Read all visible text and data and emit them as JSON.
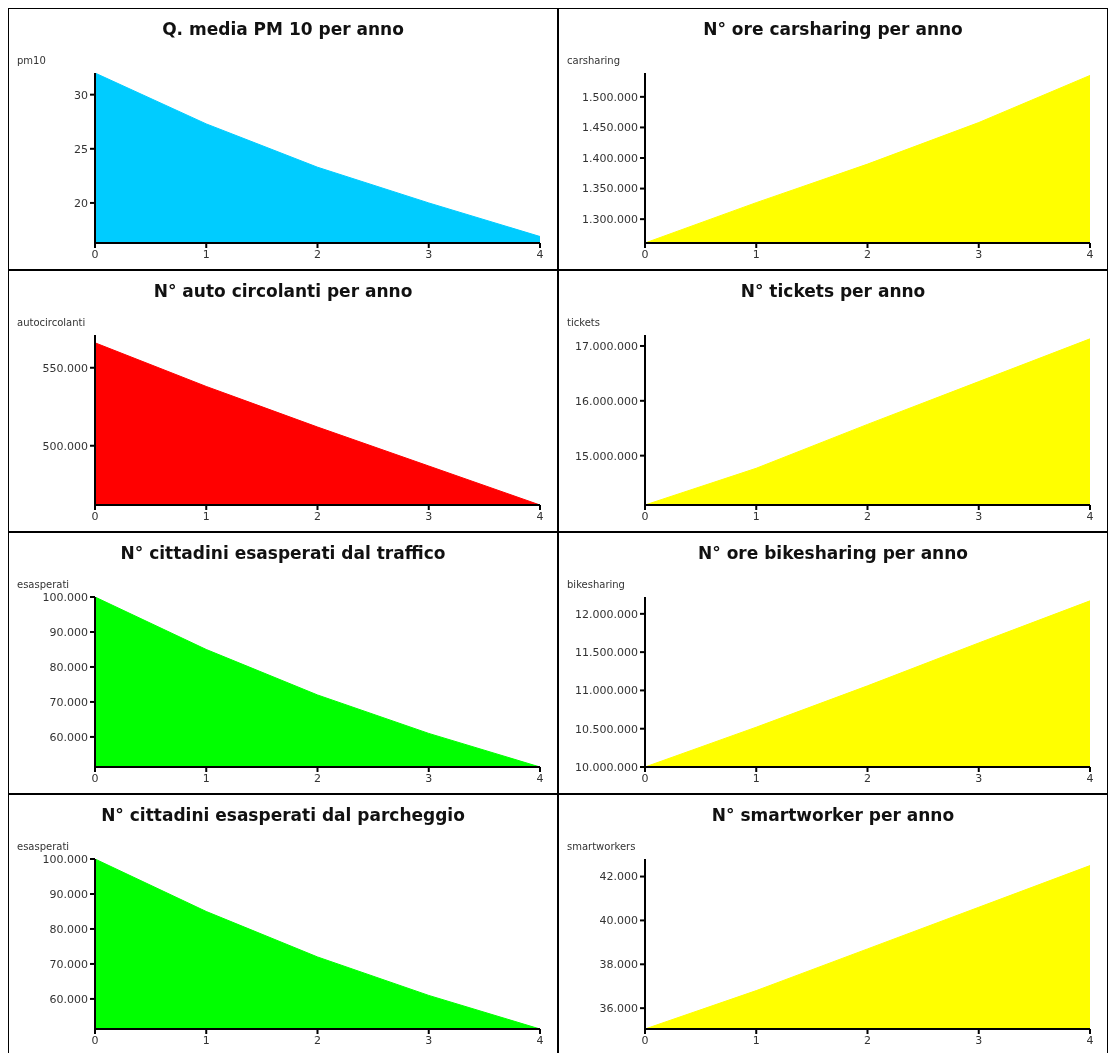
{
  "chart_data": [
    {
      "type": "area",
      "title": "Q. media PM 10 per anno",
      "ylabel": "pm10",
      "x": [
        0,
        1,
        2,
        3,
        4
      ],
      "values": [
        32,
        27.3,
        23.3,
        20,
        16.9
      ],
      "color": "#00ccff",
      "xlim": [
        0,
        4
      ],
      "xticks": [
        0,
        1,
        2,
        3,
        4
      ],
      "ylim": [
        16.3,
        32
      ],
      "yticks": [
        20,
        25,
        30
      ],
      "grid": false
    },
    {
      "type": "area",
      "title": "N° ore carsharing per anno",
      "ylabel": "carsharing",
      "x": [
        0,
        1,
        2,
        3,
        4
      ],
      "values": [
        1261000,
        1327000,
        1390000,
        1458000,
        1535000
      ],
      "color": "#ffff00",
      "xlim": [
        0,
        4
      ],
      "xticks": [
        0,
        1,
        2,
        3,
        4
      ],
      "ylim": [
        1261000,
        1539000
      ],
      "yticks": [
        {
          "value": 1300000,
          "label": "1.300.000"
        },
        {
          "value": 1350000,
          "label": "1.350.000"
        },
        {
          "value": 1400000,
          "label": "1.400.000"
        },
        {
          "value": 1450000,
          "label": "1.450.000"
        },
        {
          "value": 1500000,
          "label": "1.500.000"
        }
      ],
      "grid": false
    },
    {
      "type": "area",
      "title": "N° auto circolanti per anno",
      "ylabel": "autocircolanti",
      "x": [
        0,
        1,
        2,
        3,
        4
      ],
      "values": [
        566000,
        538000,
        512000,
        487000,
        462000
      ],
      "color": "#ff0000",
      "xlim": [
        0,
        4
      ],
      "xticks": [
        0,
        1,
        2,
        3,
        4
      ],
      "ylim": [
        462000,
        571000
      ],
      "yticks": [
        {
          "value": 500000,
          "label": "500.000"
        },
        {
          "value": 550000,
          "label": "550.000"
        }
      ],
      "grid": false
    },
    {
      "type": "area",
      "title": "N° tickets per anno",
      "ylabel": "tickets",
      "x": [
        0,
        1,
        2,
        3,
        4
      ],
      "values": [
        14100000,
        14770000,
        15570000,
        16350000,
        17130000
      ],
      "color": "#ffff00",
      "xlim": [
        0,
        4
      ],
      "xticks": [
        0,
        1,
        2,
        3,
        4
      ],
      "ylim": [
        14100000,
        17200000
      ],
      "yticks": [
        {
          "value": 15000000,
          "label": "15.000.000"
        },
        {
          "value": 16000000,
          "label": "16.000.000"
        },
        {
          "value": 17000000,
          "label": "17.000.000"
        }
      ],
      "grid": false
    },
    {
      "type": "area",
      "title": "N° cittadini esasperati dal traffico",
      "ylabel": "esasperati",
      "x": [
        0,
        1,
        2,
        3,
        4
      ],
      "values": [
        100000,
        85000,
        72000,
        61000,
        51400
      ],
      "color": "#00ff00",
      "xlim": [
        0,
        4
      ],
      "xticks": [
        0,
        1,
        2,
        3,
        4
      ],
      "ylim": [
        51400,
        100000
      ],
      "yticks": [
        {
          "value": 60000,
          "label": "60.000"
        },
        {
          "value": 70000,
          "label": "70.000"
        },
        {
          "value": 80000,
          "label": "80.000"
        },
        {
          "value": 90000,
          "label": "90.000"
        },
        {
          "value": 100000,
          "label": "100.000"
        }
      ],
      "grid": false
    },
    {
      "type": "area",
      "title": "N° ore bikesharing per anno",
      "ylabel": "bikesharing",
      "x": [
        0,
        1,
        2,
        3,
        4
      ],
      "values": [
        10000000,
        10520000,
        11060000,
        11620000,
        12170000
      ],
      "color": "#ffff00",
      "xlim": [
        0,
        4
      ],
      "xticks": [
        0,
        1,
        2,
        3,
        4
      ],
      "ylim": [
        10000000,
        12220000
      ],
      "yticks": [
        {
          "value": 10000000,
          "label": "10.000.000"
        },
        {
          "value": 10500000,
          "label": "10.500.000"
        },
        {
          "value": 11000000,
          "label": "11.000.000"
        },
        {
          "value": 11500000,
          "label": "11.500.000"
        },
        {
          "value": 12000000,
          "label": "12.000.000"
        }
      ],
      "grid": false
    },
    {
      "type": "area",
      "title": "N° cittadini esasperati dal parcheggio",
      "ylabel": "esasperati",
      "x": [
        0,
        1,
        2,
        3,
        4
      ],
      "values": [
        100000,
        85000,
        72000,
        61000,
        51400
      ],
      "color": "#00ff00",
      "xlim": [
        0,
        4
      ],
      "xticks": [
        0,
        1,
        2,
        3,
        4
      ],
      "ylim": [
        51400,
        100000
      ],
      "yticks": [
        {
          "value": 60000,
          "label": "60.000"
        },
        {
          "value": 70000,
          "label": "70.000"
        },
        {
          "value": 80000,
          "label": "80.000"
        },
        {
          "value": 90000,
          "label": "90.000"
        },
        {
          "value": 100000,
          "label": "100.000"
        }
      ],
      "grid": false
    },
    {
      "type": "area",
      "title": "N° smartworker per anno",
      "ylabel": "smartworkers",
      "x": [
        0,
        1,
        2,
        3,
        4
      ],
      "values": [
        35050,
        36800,
        38700,
        40600,
        42500
      ],
      "color": "#ffff00",
      "xlim": [
        0,
        4
      ],
      "xticks": [
        0,
        1,
        2,
        3,
        4
      ],
      "ylim": [
        35050,
        42800
      ],
      "yticks": [
        {
          "value": 36000,
          "label": "36.000"
        },
        {
          "value": 38000,
          "label": "38.000"
        },
        {
          "value": 40000,
          "label": "40.000"
        },
        {
          "value": 42000,
          "label": "42.000"
        }
      ],
      "grid": false
    }
  ]
}
